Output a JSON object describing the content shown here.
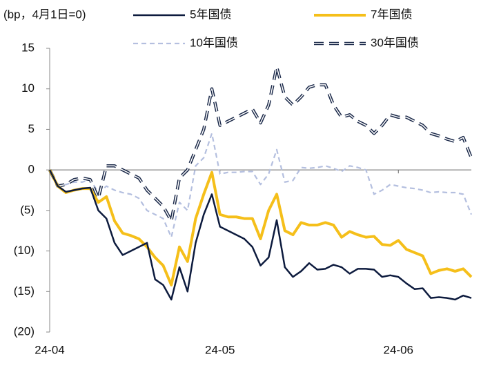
{
  "chart_data": {
    "type": "line",
    "y_label": "(bp，4月1日=0)",
    "categories": [
      "24-04",
      null,
      null,
      null,
      null,
      null,
      null,
      null,
      null,
      null,
      null,
      null,
      null,
      null,
      null,
      null,
      null,
      null,
      null,
      null,
      null,
      "24-05",
      null,
      null,
      null,
      null,
      null,
      null,
      null,
      null,
      null,
      null,
      null,
      null,
      null,
      null,
      null,
      null,
      null,
      null,
      null,
      null,
      null,
      "24-06",
      null,
      null,
      null,
      null,
      null,
      null,
      null,
      null,
      null
    ],
    "ylim": [
      -20,
      15
    ],
    "yticks": [
      15,
      10,
      5,
      0,
      {
        "value": -5,
        "label": "(5)"
      },
      {
        "value": -10,
        "label": "(10)"
      },
      {
        "value": -15,
        "label": "(15)"
      },
      {
        "value": -20,
        "label": "(20)"
      }
    ],
    "series": [
      {
        "name": "5年国债",
        "color": "#0d1b3e",
        "style": "solid",
        "values": [
          0,
          -2,
          -2.7,
          -2.5,
          -2.3,
          -2.2,
          -5,
          -6,
          -9,
          -10.5,
          -10,
          -9.5,
          -9,
          -13.5,
          -14.2,
          -16,
          -12,
          -15,
          -9,
          -5.5,
          -3,
          -7,
          -7.5,
          -8,
          -8.5,
          -9.5,
          -11.8,
          -10.8,
          -6.2,
          -12,
          -13.2,
          -12.5,
          -11.5,
          -12.3,
          -12.2,
          -11.7,
          -12,
          -12.8,
          -12.2,
          -12.2,
          -12.3,
          -13.2,
          -13,
          -13.2,
          -14,
          -14.7,
          -14.6,
          -15.8,
          -15.7,
          -15.8,
          -16,
          -15.5,
          -15.8
        ]
      },
      {
        "name": "7年国债",
        "color": "#f5bf1a",
        "style": "thick",
        "values": [
          0,
          -2,
          -2.8,
          -2.5,
          -2.3,
          -2.3,
          -4,
          -3.3,
          -6.3,
          -7.8,
          -8.1,
          -8.5,
          -9.5,
          -10.8,
          -11.8,
          -14.2,
          -9.5,
          -11.3,
          -6,
          -3,
          -0.3,
          -5.5,
          -5.8,
          -5.8,
          -6,
          -6,
          -8.5,
          -5,
          -3,
          -7.5,
          -8,
          -6.5,
          -6.8,
          -6.8,
          -6.5,
          -6.8,
          -8.3,
          -7.6,
          -8,
          -8.3,
          -8.2,
          -9.2,
          -9.3,
          -8.7,
          -9.8,
          -10.2,
          -10.6,
          -12.8,
          -12.4,
          -12.2,
          -12.5,
          -12.2,
          -13.2
        ]
      },
      {
        "name": "10年国债",
        "color": "#b4bfdf",
        "style": "dashed",
        "values": [
          0,
          -2,
          -1.8,
          -1.5,
          -1.5,
          -1.2,
          -2.8,
          -2,
          -2.5,
          -2.8,
          -3,
          -3.5,
          -5,
          -5.5,
          -6,
          -8.3,
          -4,
          -5,
          0.5,
          1.5,
          4.5,
          -0.5,
          -0.3,
          -0.3,
          -0.2,
          -0.2,
          -1.8,
          -0.5,
          2.5,
          -1.5,
          -1.3,
          0.3,
          0.2,
          0.3,
          0.5,
          0.2,
          -0.2,
          0.5,
          0.3,
          0,
          -3,
          -2.5,
          -1.8,
          -2,
          -2.2,
          -2.3,
          -2.5,
          -2.8,
          -2.7,
          -2.8,
          -2.8,
          -3,
          -5.5
        ]
      },
      {
        "name": "30年国债",
        "color": "#1c2a4a",
        "style": "long-dashed",
        "values": [
          0,
          -2,
          -1.8,
          -1.2,
          -1,
          -1.2,
          -3.5,
          0.5,
          0.5,
          0,
          -0.5,
          -1,
          -2.5,
          -3.5,
          -4.5,
          -6.3,
          -1,
          0,
          2.5,
          5,
          10,
          5.5,
          6,
          6.5,
          7,
          7.5,
          5.8,
          8,
          12.7,
          9,
          8,
          9,
          10.2,
          10.5,
          10.5,
          8,
          6.5,
          6.8,
          6,
          5.5,
          4.5,
          5.5,
          6.8,
          6.5,
          6.5,
          6,
          5.5,
          4.5,
          4.2,
          3.8,
          3.5,
          4,
          1.5
        ]
      }
    ]
  }
}
